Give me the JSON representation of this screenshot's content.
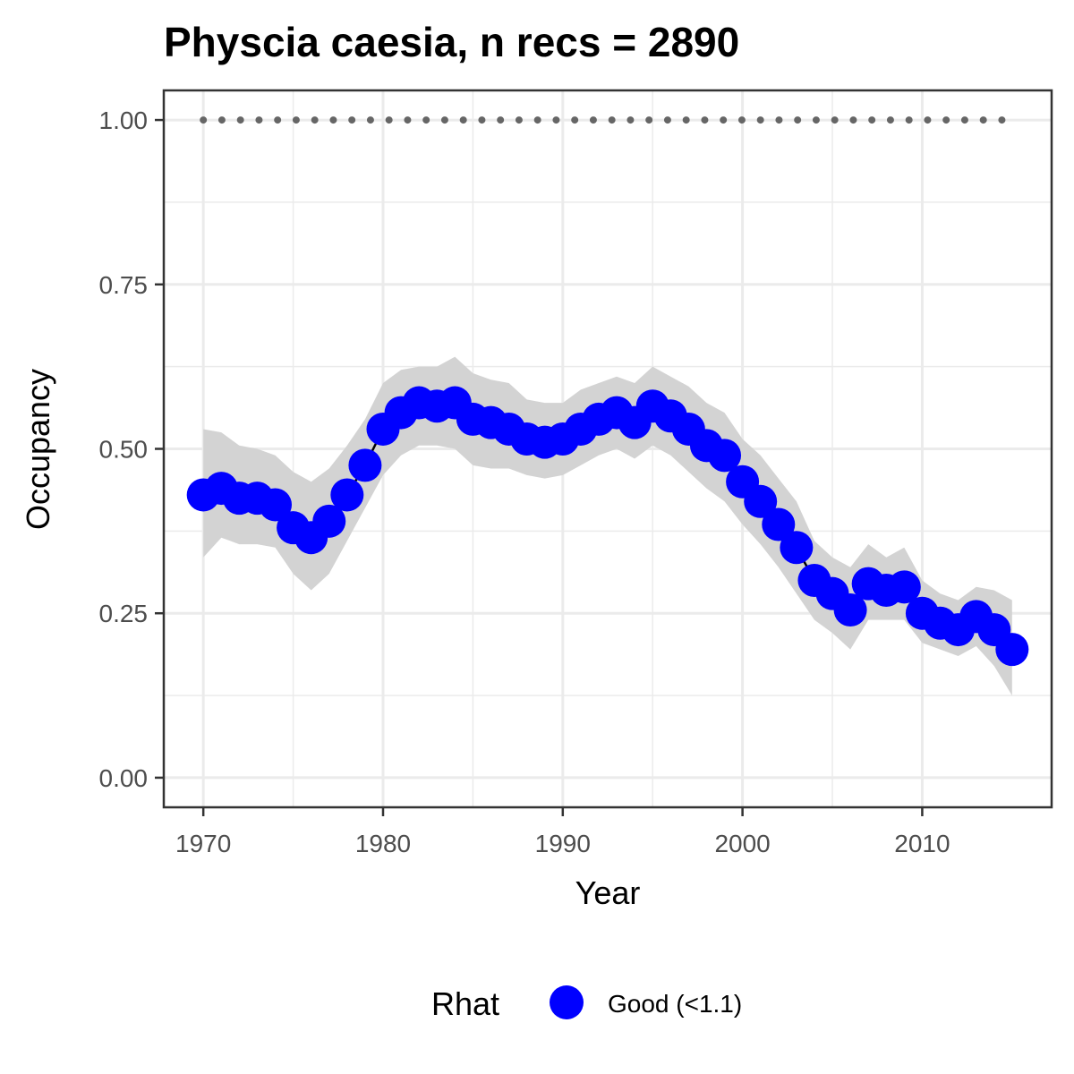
{
  "chart_data": {
    "type": "line",
    "title": "Physcia caesia, n recs = 2890",
    "xlabel": "Year",
    "ylabel": "Occupancy",
    "xlim": [
      1967.8,
      2017.2
    ],
    "ylim": [
      -0.045,
      1.045
    ],
    "x_ticks": [
      1970,
      1980,
      1990,
      2000,
      2010
    ],
    "y_ticks": [
      0.0,
      0.25,
      0.5,
      0.75,
      1.0
    ],
    "y_tick_labels": [
      "0.00",
      "0.25",
      "0.50",
      "0.75",
      "1.00"
    ],
    "grid": true,
    "legend": {
      "title": "Rhat",
      "position": "bottom",
      "entries": [
        {
          "label": "Good (<1.1)",
          "color": "#0000ff"
        }
      ]
    },
    "colors": {
      "points": "#0000ff",
      "line": "#000000",
      "ribbon": "#d3d3d3",
      "reference": "#666666",
      "grid": "#ebebeb",
      "panel_border": "#333333"
    },
    "reference_line": {
      "y": 1.0,
      "style": "dotted"
    },
    "series": [
      {
        "name": "Good (<1.1)",
        "x": [
          1970,
          1971,
          1972,
          1973,
          1974,
          1975,
          1976,
          1977,
          1978,
          1979,
          1980,
          1981,
          1982,
          1983,
          1984,
          1985,
          1986,
          1987,
          1988,
          1989,
          1990,
          1991,
          1992,
          1993,
          1994,
          1995,
          1996,
          1997,
          1998,
          1999,
          2000,
          2001,
          2002,
          2003,
          2004,
          2005,
          2006,
          2007,
          2008,
          2009,
          2010,
          2011,
          2012,
          2013,
          2014,
          2015
        ],
        "y": [
          0.43,
          0.44,
          0.425,
          0.425,
          0.415,
          0.38,
          0.365,
          0.39,
          0.43,
          0.475,
          0.53,
          0.555,
          0.57,
          0.565,
          0.57,
          0.545,
          0.54,
          0.53,
          0.515,
          0.51,
          0.515,
          0.53,
          0.545,
          0.555,
          0.54,
          0.565,
          0.55,
          0.53,
          0.505,
          0.49,
          0.45,
          0.42,
          0.385,
          0.35,
          0.3,
          0.28,
          0.255,
          0.295,
          0.285,
          0.29,
          0.25,
          0.235,
          0.225,
          0.245,
          0.225,
          0.195
        ],
        "lower": [
          0.335,
          0.365,
          0.355,
          0.355,
          0.35,
          0.31,
          0.285,
          0.31,
          0.36,
          0.41,
          0.46,
          0.49,
          0.505,
          0.505,
          0.5,
          0.475,
          0.47,
          0.47,
          0.46,
          0.455,
          0.46,
          0.475,
          0.49,
          0.5,
          0.485,
          0.505,
          0.49,
          0.465,
          0.44,
          0.42,
          0.385,
          0.355,
          0.32,
          0.28,
          0.24,
          0.22,
          0.195,
          0.24,
          0.24,
          0.24,
          0.205,
          0.195,
          0.185,
          0.2,
          0.17,
          0.125
        ],
        "upper": [
          0.53,
          0.525,
          0.505,
          0.5,
          0.49,
          0.465,
          0.45,
          0.47,
          0.505,
          0.545,
          0.6,
          0.62,
          0.625,
          0.625,
          0.64,
          0.615,
          0.605,
          0.6,
          0.575,
          0.57,
          0.57,
          0.59,
          0.6,
          0.61,
          0.6,
          0.625,
          0.61,
          0.595,
          0.57,
          0.555,
          0.515,
          0.49,
          0.455,
          0.42,
          0.36,
          0.335,
          0.32,
          0.355,
          0.335,
          0.35,
          0.3,
          0.28,
          0.27,
          0.29,
          0.285,
          0.27
        ]
      }
    ]
  }
}
